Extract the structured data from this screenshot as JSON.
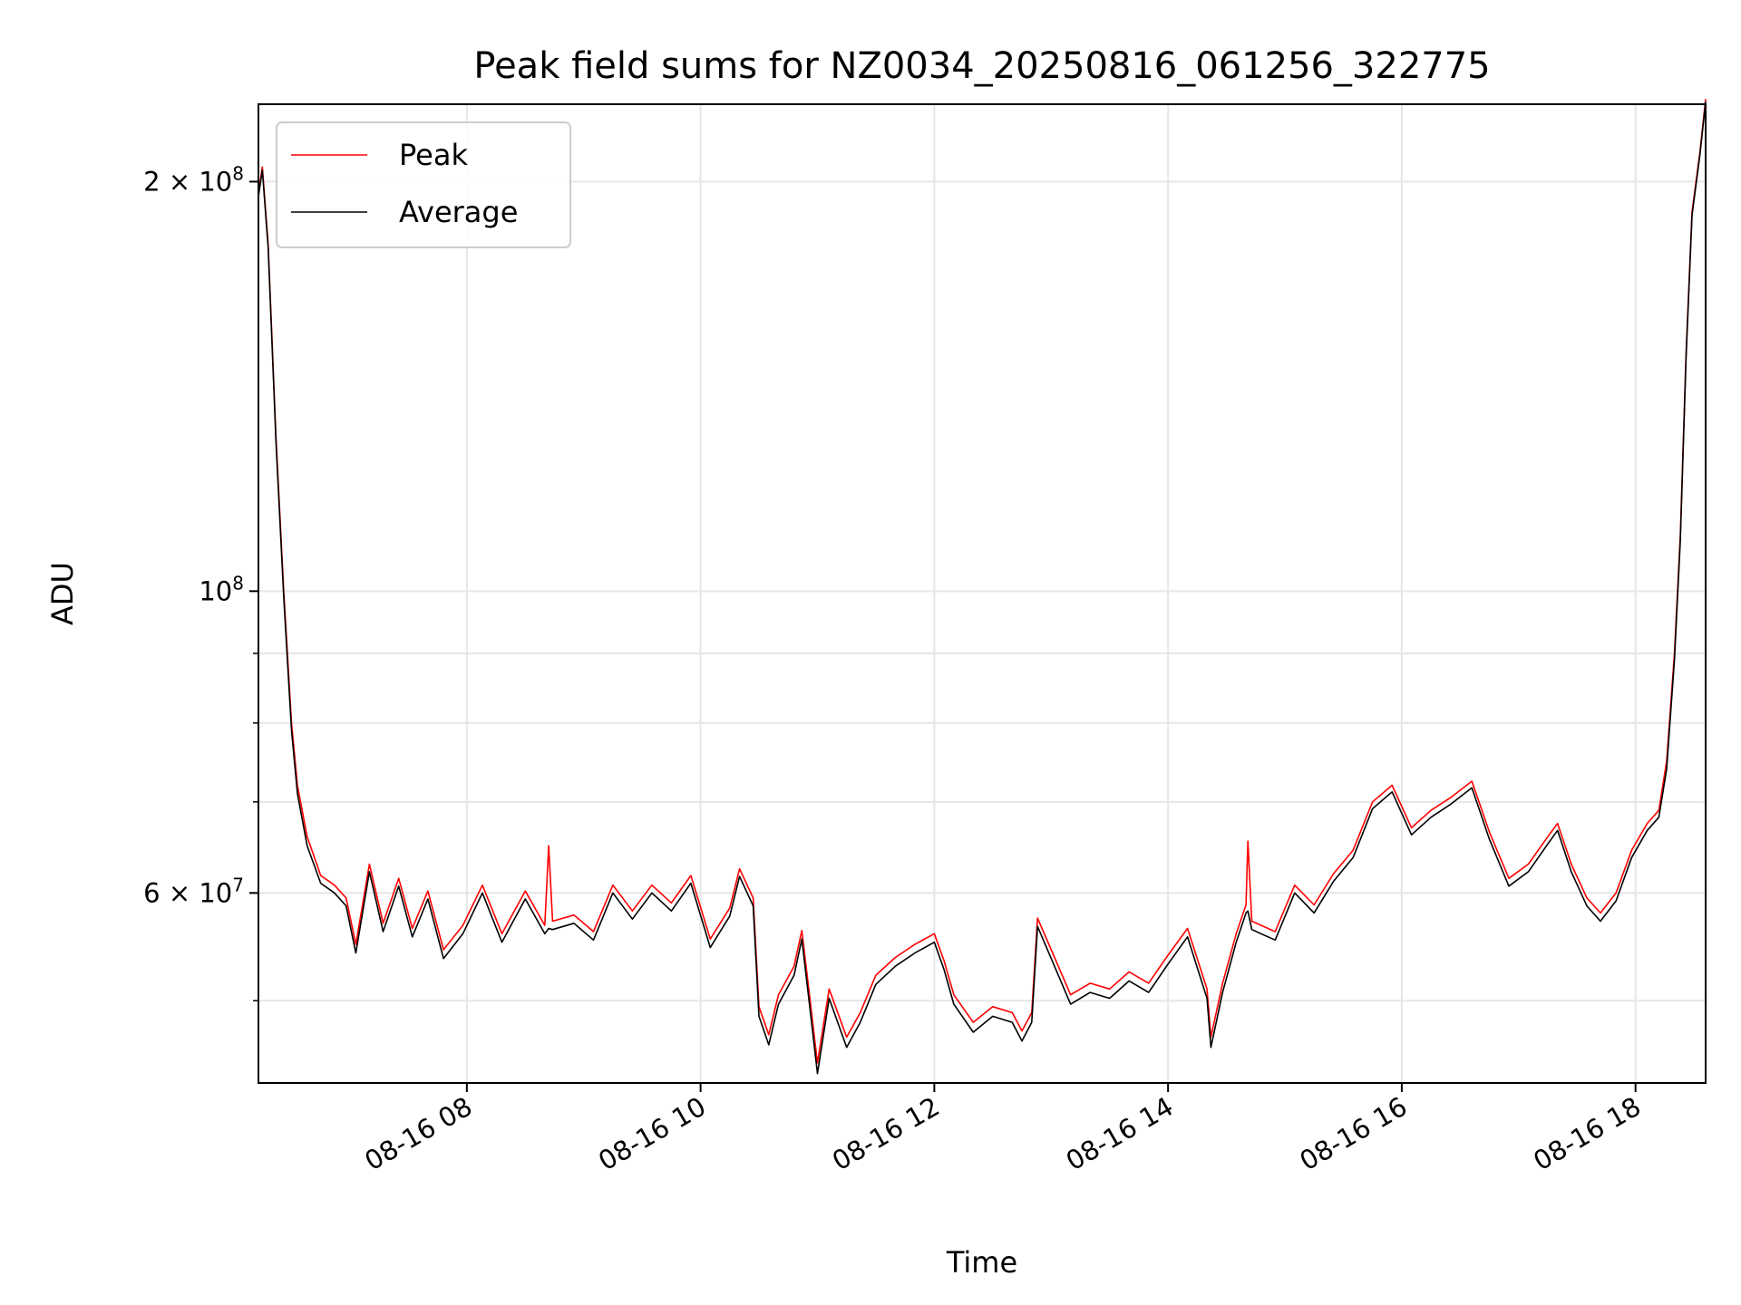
{
  "chart_data": {
    "type": "line",
    "title": "Peak field sums for NZ0034_20250816_061256_322775",
    "xlabel": "Time",
    "ylabel": "ADU",
    "yscale": "log",
    "ylim": [
      43500000,
      228000000
    ],
    "xlim": [
      "2025-08-16 06:13",
      "2025-08-16 18:36"
    ],
    "grid": true,
    "legend_position": "top-left",
    "x_ticks": [
      "08-16 08",
      "08-16 10",
      "08-16 12",
      "08-16 14",
      "08-16 16",
      "08-16 18"
    ],
    "y_ticks_major": [
      {
        "value": 100000000,
        "mantissa": "",
        "base": "10",
        "exp": "8"
      },
      {
        "value": 200000000,
        "mantissa": "2 × ",
        "base": "10",
        "exp": "8"
      },
      {
        "value": 60000000,
        "mantissa": "6 × ",
        "base": "10",
        "exp": "7"
      }
    ],
    "y_ticks_minor": [
      50000000,
      70000000,
      80000000,
      90000000
    ],
    "series": [
      {
        "name": "Peak",
        "color": "#ff0000",
        "points": [
          [
            "2025-08-16 06:13",
            196000000
          ],
          [
            "2025-08-16 06:15",
            205000000
          ],
          [
            "2025-08-16 06:18",
            180000000
          ],
          [
            "2025-08-16 06:22",
            130000000
          ],
          [
            "2025-08-16 06:26",
            100000000
          ],
          [
            "2025-08-16 06:30",
            80000000
          ],
          [
            "2025-08-16 06:33",
            72000000
          ],
          [
            "2025-08-16 06:38",
            66000000
          ],
          [
            "2025-08-16 06:45",
            61800000
          ],
          [
            "2025-08-16 06:52",
            60800000
          ],
          [
            "2025-08-16 06:58",
            59500000
          ],
          [
            "2025-08-16 07:03",
            55000000
          ],
          [
            "2025-08-16 07:10",
            63000000
          ],
          [
            "2025-08-16 07:17",
            57000000
          ],
          [
            "2025-08-16 07:25",
            61500000
          ],
          [
            "2025-08-16 07:32",
            56500000
          ],
          [
            "2025-08-16 07:40",
            60200000
          ],
          [
            "2025-08-16 07:48",
            54500000
          ],
          [
            "2025-08-16 07:58",
            56800000
          ],
          [
            "2025-08-16 08:08",
            60800000
          ],
          [
            "2025-08-16 08:18",
            56000000
          ],
          [
            "2025-08-16 08:30",
            60200000
          ],
          [
            "2025-08-16 08:40",
            56800000
          ],
          [
            "2025-08-16 08:42",
            65000000
          ],
          [
            "2025-08-16 08:44",
            57200000
          ],
          [
            "2025-08-16 08:55",
            57800000
          ],
          [
            "2025-08-16 09:05",
            56200000
          ],
          [
            "2025-08-16 09:15",
            60800000
          ],
          [
            "2025-08-16 09:25",
            58200000
          ],
          [
            "2025-08-16 09:35",
            60800000
          ],
          [
            "2025-08-16 09:45",
            59000000
          ],
          [
            "2025-08-16 09:55",
            61800000
          ],
          [
            "2025-08-16 10:05",
            55500000
          ],
          [
            "2025-08-16 10:15",
            58500000
          ],
          [
            "2025-08-16 10:20",
            62500000
          ],
          [
            "2025-08-16 10:27",
            59500000
          ],
          [
            "2025-08-16 10:30",
            49500000
          ],
          [
            "2025-08-16 10:35",
            47200000
          ],
          [
            "2025-08-16 10:40",
            50500000
          ],
          [
            "2025-08-16 10:48",
            53000000
          ],
          [
            "2025-08-16 10:52",
            56300000
          ],
          [
            "2025-08-16 10:57",
            49000000
          ],
          [
            "2025-08-16 11:00",
            45000000
          ],
          [
            "2025-08-16 11:06",
            51000000
          ],
          [
            "2025-08-16 11:15",
            47000000
          ],
          [
            "2025-08-16 11:22",
            49000000
          ],
          [
            "2025-08-16 11:30",
            52200000
          ],
          [
            "2025-08-16 11:40",
            53800000
          ],
          [
            "2025-08-16 11:50",
            55000000
          ],
          [
            "2025-08-16 12:00",
            56000000
          ],
          [
            "2025-08-16 12:05",
            53500000
          ],
          [
            "2025-08-16 12:10",
            50500000
          ],
          [
            "2025-08-16 12:20",
            48200000
          ],
          [
            "2025-08-16 12:30",
            49500000
          ],
          [
            "2025-08-16 12:40",
            49000000
          ],
          [
            "2025-08-16 12:45",
            47500000
          ],
          [
            "2025-08-16 12:50",
            49000000
          ],
          [
            "2025-08-16 12:53",
            57500000
          ],
          [
            "2025-08-16 13:00",
            54500000
          ],
          [
            "2025-08-16 13:10",
            50500000
          ],
          [
            "2025-08-16 13:20",
            51500000
          ],
          [
            "2025-08-16 13:30",
            51000000
          ],
          [
            "2025-08-16 13:40",
            52500000
          ],
          [
            "2025-08-16 13:50",
            51500000
          ],
          [
            "2025-08-16 14:00",
            54000000
          ],
          [
            "2025-08-16 14:10",
            56500000
          ],
          [
            "2025-08-16 14:20",
            51000000
          ],
          [
            "2025-08-16 14:22",
            47000000
          ],
          [
            "2025-08-16 14:28",
            51500000
          ],
          [
            "2025-08-16 14:35",
            56000000
          ],
          [
            "2025-08-16 14:40",
            58800000
          ],
          [
            "2025-08-16 14:41",
            65500000
          ],
          [
            "2025-08-16 14:43",
            57200000
          ],
          [
            "2025-08-16 14:55",
            56200000
          ],
          [
            "2025-08-16 15:05",
            60800000
          ],
          [
            "2025-08-16 15:15",
            58800000
          ],
          [
            "2025-08-16 15:25",
            62000000
          ],
          [
            "2025-08-16 15:35",
            64500000
          ],
          [
            "2025-08-16 15:45",
            70000000
          ],
          [
            "2025-08-16 15:55",
            72000000
          ],
          [
            "2025-08-16 16:05",
            67000000
          ],
          [
            "2025-08-16 16:15",
            69000000
          ],
          [
            "2025-08-16 16:25",
            70500000
          ],
          [
            "2025-08-16 16:36",
            72500000
          ],
          [
            "2025-08-16 16:45",
            66500000
          ],
          [
            "2025-08-16 16:55",
            61500000
          ],
          [
            "2025-08-16 17:05",
            63000000
          ],
          [
            "2025-08-16 17:15",
            66000000
          ],
          [
            "2025-08-16 17:20",
            67500000
          ],
          [
            "2025-08-16 17:27",
            63000000
          ],
          [
            "2025-08-16 17:35",
            59500000
          ],
          [
            "2025-08-16 17:42",
            58000000
          ],
          [
            "2025-08-16 17:50",
            60000000
          ],
          [
            "2025-08-16 17:58",
            64500000
          ],
          [
            "2025-08-16 18:06",
            67500000
          ],
          [
            "2025-08-16 18:12",
            69000000
          ],
          [
            "2025-08-16 18:16",
            75000000
          ],
          [
            "2025-08-16 18:20",
            90000000
          ],
          [
            "2025-08-16 18:23",
            110000000
          ],
          [
            "2025-08-16 18:26",
            150000000
          ],
          [
            "2025-08-16 18:29",
            190000000
          ],
          [
            "2025-08-16 18:33",
            210000000
          ],
          [
            "2025-08-16 18:36",
            230000000
          ]
        ]
      },
      {
        "name": "Average",
        "color": "#000000",
        "points": [
          [
            "2025-08-16 06:13",
            195000000
          ],
          [
            "2025-08-16 06:15",
            204000000
          ],
          [
            "2025-08-16 06:18",
            179000000
          ],
          [
            "2025-08-16 06:22",
            129000000
          ],
          [
            "2025-08-16 06:26",
            99000000
          ],
          [
            "2025-08-16 06:30",
            79000000
          ],
          [
            "2025-08-16 06:33",
            71000000
          ],
          [
            "2025-08-16 06:38",
            65000000
          ],
          [
            "2025-08-16 06:45",
            61000000
          ],
          [
            "2025-08-16 06:52",
            60000000
          ],
          [
            "2025-08-16 06:58",
            58700000
          ],
          [
            "2025-08-16 07:03",
            54200000
          ],
          [
            "2025-08-16 07:10",
            62200000
          ],
          [
            "2025-08-16 07:17",
            56200000
          ],
          [
            "2025-08-16 07:25",
            60700000
          ],
          [
            "2025-08-16 07:32",
            55700000
          ],
          [
            "2025-08-16 07:40",
            59400000
          ],
          [
            "2025-08-16 07:48",
            53700000
          ],
          [
            "2025-08-16 07:58",
            56000000
          ],
          [
            "2025-08-16 08:08",
            60000000
          ],
          [
            "2025-08-16 08:18",
            55200000
          ],
          [
            "2025-08-16 08:30",
            59400000
          ],
          [
            "2025-08-16 08:40",
            56000000
          ],
          [
            "2025-08-16 08:42",
            56500000
          ],
          [
            "2025-08-16 08:44",
            56400000
          ],
          [
            "2025-08-16 08:55",
            57000000
          ],
          [
            "2025-08-16 09:05",
            55400000
          ],
          [
            "2025-08-16 09:15",
            60000000
          ],
          [
            "2025-08-16 09:25",
            57400000
          ],
          [
            "2025-08-16 09:35",
            60000000
          ],
          [
            "2025-08-16 09:45",
            58200000
          ],
          [
            "2025-08-16 09:55",
            61000000
          ],
          [
            "2025-08-16 10:05",
            54700000
          ],
          [
            "2025-08-16 10:15",
            57700000
          ],
          [
            "2025-08-16 10:20",
            61700000
          ],
          [
            "2025-08-16 10:27",
            58700000
          ],
          [
            "2025-08-16 10:30",
            48700000
          ],
          [
            "2025-08-16 10:35",
            46400000
          ],
          [
            "2025-08-16 10:40",
            49700000
          ],
          [
            "2025-08-16 10:48",
            52200000
          ],
          [
            "2025-08-16 10:52",
            55500000
          ],
          [
            "2025-08-16 10:57",
            48200000
          ],
          [
            "2025-08-16 11:00",
            44200000
          ],
          [
            "2025-08-16 11:06",
            50200000
          ],
          [
            "2025-08-16 11:15",
            46200000
          ],
          [
            "2025-08-16 11:22",
            48200000
          ],
          [
            "2025-08-16 11:30",
            51400000
          ],
          [
            "2025-08-16 11:40",
            53000000
          ],
          [
            "2025-08-16 11:50",
            54200000
          ],
          [
            "2025-08-16 12:00",
            55200000
          ],
          [
            "2025-08-16 12:05",
            52700000
          ],
          [
            "2025-08-16 12:10",
            49700000
          ],
          [
            "2025-08-16 12:20",
            47400000
          ],
          [
            "2025-08-16 12:30",
            48700000
          ],
          [
            "2025-08-16 12:40",
            48200000
          ],
          [
            "2025-08-16 12:45",
            46700000
          ],
          [
            "2025-08-16 12:50",
            48200000
          ],
          [
            "2025-08-16 12:53",
            56700000
          ],
          [
            "2025-08-16 13:00",
            53700000
          ],
          [
            "2025-08-16 13:10",
            49700000
          ],
          [
            "2025-08-16 13:20",
            50700000
          ],
          [
            "2025-08-16 13:30",
            50200000
          ],
          [
            "2025-08-16 13:40",
            51700000
          ],
          [
            "2025-08-16 13:50",
            50700000
          ],
          [
            "2025-08-16 14:00",
            53200000
          ],
          [
            "2025-08-16 14:10",
            55700000
          ],
          [
            "2025-08-16 14:20",
            50200000
          ],
          [
            "2025-08-16 14:22",
            46200000
          ],
          [
            "2025-08-16 14:28",
            50700000
          ],
          [
            "2025-08-16 14:35",
            55200000
          ],
          [
            "2025-08-16 14:40",
            58000000
          ],
          [
            "2025-08-16 14:41",
            58200000
          ],
          [
            "2025-08-16 14:43",
            56400000
          ],
          [
            "2025-08-16 14:55",
            55400000
          ],
          [
            "2025-08-16 15:05",
            60000000
          ],
          [
            "2025-08-16 15:15",
            58000000
          ],
          [
            "2025-08-16 15:25",
            61200000
          ],
          [
            "2025-08-16 15:35",
            63700000
          ],
          [
            "2025-08-16 15:45",
            69200000
          ],
          [
            "2025-08-16 15:55",
            71200000
          ],
          [
            "2025-08-16 16:05",
            66200000
          ],
          [
            "2025-08-16 16:15",
            68200000
          ],
          [
            "2025-08-16 16:25",
            69700000
          ],
          [
            "2025-08-16 16:36",
            71700000
          ],
          [
            "2025-08-16 16:45",
            65700000
          ],
          [
            "2025-08-16 16:55",
            60700000
          ],
          [
            "2025-08-16 17:05",
            62200000
          ],
          [
            "2025-08-16 17:15",
            65200000
          ],
          [
            "2025-08-16 17:20",
            66700000
          ],
          [
            "2025-08-16 17:27",
            62200000
          ],
          [
            "2025-08-16 17:35",
            58700000
          ],
          [
            "2025-08-16 17:42",
            57200000
          ],
          [
            "2025-08-16 17:50",
            59200000
          ],
          [
            "2025-08-16 17:58",
            63700000
          ],
          [
            "2025-08-16 18:06",
            66700000
          ],
          [
            "2025-08-16 18:12",
            68200000
          ],
          [
            "2025-08-16 18:16",
            74000000
          ],
          [
            "2025-08-16 18:20",
            89000000
          ],
          [
            "2025-08-16 18:23",
            109000000
          ],
          [
            "2025-08-16 18:26",
            149000000
          ],
          [
            "2025-08-16 18:29",
            189000000
          ],
          [
            "2025-08-16 18:33",
            209000000
          ],
          [
            "2025-08-16 18:36",
            229000000
          ]
        ]
      }
    ]
  }
}
